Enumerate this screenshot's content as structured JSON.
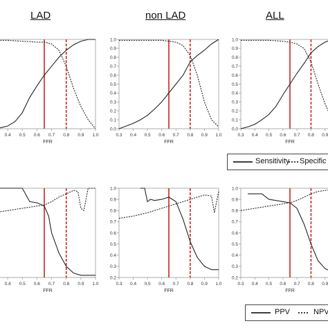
{
  "column_titles": [
    "LAD",
    "non LAD",
    "ALL"
  ],
  "legends": {
    "top": {
      "solid": "Sensitivity",
      "dashed": "Specific"
    },
    "bottom": {
      "solid": "PPV",
      "dashed": "NPV"
    }
  },
  "colors": {
    "curve": "#222222",
    "threshold": "#cc2222",
    "frame": "#999999"
  },
  "chart_data": [
    {
      "type": "line",
      "title": "LAD",
      "xlabel": "FFR",
      "ylabel": "",
      "xlim": [
        0.3,
        1.0
      ],
      "ylim": [
        0,
        1.0
      ],
      "x_ticks": [
        "0.4",
        "0.5",
        "0.6",
        "0.7",
        "0.8",
        "0.9",
        "1.0"
      ],
      "y_ticks": [],
      "vlines": [
        {
          "x": 0.65,
          "style": "solid"
        },
        {
          "x": 0.8,
          "style": "dashed"
        }
      ],
      "series": [
        {
          "name": "Sensitivity",
          "style": "solid",
          "x": [
            0.3,
            0.35,
            0.4,
            0.45,
            0.5,
            0.55,
            0.6,
            0.65,
            0.7,
            0.75,
            0.8,
            0.85,
            0.9,
            0.95,
            1.0
          ],
          "y": [
            0.0,
            0.01,
            0.03,
            0.08,
            0.18,
            0.35,
            0.48,
            0.6,
            0.7,
            0.8,
            0.88,
            0.94,
            0.98,
            1.0,
            1.0
          ]
        },
        {
          "name": "Specificity",
          "style": "dashed",
          "x": [
            0.3,
            0.4,
            0.5,
            0.6,
            0.65,
            0.7,
            0.75,
            0.8,
            0.85,
            0.9,
            0.95,
            1.0
          ],
          "y": [
            0.99,
            0.99,
            0.98,
            0.97,
            0.97,
            0.95,
            0.88,
            0.7,
            0.45,
            0.25,
            0.1,
            0.0
          ]
        }
      ]
    },
    {
      "type": "line",
      "title": "non LAD",
      "xlabel": "FFR",
      "ylabel": "",
      "xlim": [
        0.3,
        1.0
      ],
      "ylim": [
        0,
        1.0
      ],
      "x_ticks": [
        "0.3",
        "0.4",
        "0.5",
        "0.6",
        "0.7",
        "0.8",
        "0.9",
        "1.0"
      ],
      "y_ticks": [
        "0.0",
        "0.1",
        "0.2",
        "0.3",
        "0.4",
        "0.5",
        "0.6",
        "0.7",
        "0.8",
        "0.9",
        "1.0"
      ],
      "vlines": [
        {
          "x": 0.65,
          "style": "solid"
        },
        {
          "x": 0.8,
          "style": "dashed"
        }
      ],
      "series": [
        {
          "name": "Sensitivity",
          "style": "solid",
          "x": [
            0.3,
            0.35,
            0.4,
            0.45,
            0.5,
            0.55,
            0.6,
            0.65,
            0.7,
            0.75,
            0.8,
            0.85,
            0.9,
            0.95,
            1.0
          ],
          "y": [
            0.0,
            0.03,
            0.06,
            0.1,
            0.15,
            0.22,
            0.3,
            0.4,
            0.5,
            0.6,
            0.75,
            0.82,
            0.88,
            0.95,
            1.0
          ]
        },
        {
          "name": "Specificity",
          "style": "dashed",
          "x": [
            0.3,
            0.4,
            0.5,
            0.6,
            0.7,
            0.75,
            0.8,
            0.85,
            0.9,
            0.95,
            1.0
          ],
          "y": [
            0.99,
            0.99,
            0.99,
            0.99,
            0.97,
            0.93,
            0.82,
            0.6,
            0.3,
            0.1,
            0.02
          ]
        }
      ]
    },
    {
      "type": "line",
      "title": "ALL",
      "xlabel": "FFR",
      "ylabel": "",
      "xlim": [
        0.3,
        1.0
      ],
      "ylim": [
        0,
        1.0
      ],
      "x_ticks": [
        "0.3",
        "0.4",
        "0.5",
        "0.6",
        "0.7",
        "0.8",
        "0.9"
      ],
      "y_ticks": [
        "0.0",
        "0.1",
        "0.2",
        "0.3",
        "0.4",
        "0.5",
        "0.6",
        "0.7",
        "0.8",
        "0.9",
        "1.0"
      ],
      "vlines": [
        {
          "x": 0.65,
          "style": "solid"
        },
        {
          "x": 0.8,
          "style": "dashed"
        }
      ],
      "series": [
        {
          "name": "Sensitivity",
          "style": "solid",
          "x": [
            0.3,
            0.35,
            0.4,
            0.45,
            0.5,
            0.55,
            0.6,
            0.65,
            0.7,
            0.75,
            0.8,
            0.85,
            0.9,
            0.95,
            1.0
          ],
          "y": [
            0.0,
            0.02,
            0.05,
            0.1,
            0.16,
            0.25,
            0.38,
            0.5,
            0.62,
            0.73,
            0.85,
            0.92,
            0.97,
            1.0,
            1.0
          ]
        },
        {
          "name": "Specificity",
          "style": "dashed",
          "x": [
            0.3,
            0.4,
            0.5,
            0.6,
            0.65,
            0.7,
            0.75,
            0.8,
            0.85,
            0.9,
            0.95,
            1.0
          ],
          "y": [
            0.99,
            0.99,
            0.99,
            0.98,
            0.97,
            0.95,
            0.9,
            0.75,
            0.5,
            0.28,
            0.1,
            0.0
          ]
        }
      ]
    },
    {
      "type": "line",
      "title": "",
      "xlabel": "FFR",
      "ylabel": "",
      "xlim": [
        0.3,
        1.0
      ],
      "ylim": [
        0.2,
        1.0
      ],
      "x_ticks": [
        "0.4",
        "0.5",
        "0.6",
        "0.7",
        "0.8",
        "0.9",
        "1.0"
      ],
      "y_ticks": [],
      "vlines": [
        {
          "x": 0.65,
          "style": "solid"
        },
        {
          "x": 0.8,
          "style": "dashed"
        }
      ],
      "series": [
        {
          "name": "PPV",
          "style": "solid",
          "x": [
            0.3,
            0.4,
            0.5,
            0.55,
            0.6,
            0.65,
            0.68,
            0.7,
            0.75,
            0.8,
            0.85,
            0.9,
            0.95,
            1.0
          ],
          "y": [
            1.0,
            1.0,
            1.0,
            0.88,
            0.87,
            0.84,
            0.75,
            0.6,
            0.42,
            0.3,
            0.24,
            0.22,
            0.22,
            0.22
          ]
        },
        {
          "name": "NPV",
          "style": "dashed",
          "x": [
            0.3,
            0.4,
            0.5,
            0.6,
            0.65,
            0.7,
            0.75,
            0.8,
            0.85,
            0.88,
            0.9,
            0.92,
            0.95,
            1.0
          ],
          "y": [
            0.78,
            0.8,
            0.82,
            0.84,
            0.85,
            0.88,
            0.92,
            0.95,
            0.98,
            0.97,
            0.82,
            0.8,
            1.0,
            1.0
          ]
        }
      ]
    },
    {
      "type": "line",
      "title": "",
      "xlabel": "FFR",
      "ylabel": "",
      "xlim": [
        0.3,
        1.0
      ],
      "ylim": [
        0.2,
        1.0
      ],
      "x_ticks": [
        "0.3",
        "0.4",
        "0.5",
        "0.6",
        "0.7",
        "0.8",
        "0.9",
        "1.0"
      ],
      "y_ticks": [
        "0.2",
        "0.3",
        "0.4",
        "0.5",
        "0.6",
        "0.7",
        "0.8",
        "0.9",
        "1.0"
      ],
      "vlines": [
        {
          "x": 0.65,
          "style": "solid"
        },
        {
          "x": 0.8,
          "style": "dashed"
        }
      ],
      "series": [
        {
          "name": "PPV",
          "style": "solid",
          "x": [
            0.45,
            0.48,
            0.5,
            0.52,
            0.55,
            0.6,
            0.65,
            0.7,
            0.75,
            0.8,
            0.85,
            0.9,
            0.95,
            1.0
          ],
          "y": [
            1.0,
            1.0,
            0.88,
            0.9,
            0.89,
            0.9,
            0.92,
            0.88,
            0.72,
            0.52,
            0.38,
            0.3,
            0.27,
            0.27
          ]
        },
        {
          "name": "NPV",
          "style": "dashed",
          "x": [
            0.3,
            0.4,
            0.5,
            0.6,
            0.65,
            0.7,
            0.75,
            0.8,
            0.85,
            0.9,
            0.95,
            0.97,
            1.0
          ],
          "y": [
            0.73,
            0.75,
            0.78,
            0.82,
            0.84,
            0.86,
            0.88,
            0.9,
            0.92,
            0.94,
            0.93,
            0.78,
            0.97
          ]
        }
      ]
    },
    {
      "type": "line",
      "title": "",
      "xlabel": "FFR",
      "ylabel": "",
      "xlim": [
        0.3,
        1.0
      ],
      "ylim": [
        0.2,
        1.0
      ],
      "x_ticks": [
        "0.3",
        "0.4",
        "0.5",
        "0.6",
        "0.7",
        "0.8",
        "0.9"
      ],
      "y_ticks": [
        "0.2",
        "0.3",
        "0.4",
        "0.5",
        "0.6",
        "0.7",
        "0.8",
        "0.9",
        "1.0"
      ],
      "vlines": [
        {
          "x": 0.65,
          "style": "solid"
        },
        {
          "x": 0.8,
          "style": "dashed"
        }
      ],
      "series": [
        {
          "name": "PPV",
          "style": "solid",
          "x": [
            0.35,
            0.45,
            0.5,
            0.55,
            0.6,
            0.65,
            0.7,
            0.75,
            0.8,
            0.85,
            0.9,
            0.95,
            1.0
          ],
          "y": [
            0.95,
            0.95,
            0.9,
            0.89,
            0.88,
            0.87,
            0.82,
            0.68,
            0.5,
            0.35,
            0.28,
            0.25,
            0.24
          ]
        },
        {
          "name": "NPV",
          "style": "dashed",
          "x": [
            0.3,
            0.4,
            0.5,
            0.6,
            0.65,
            0.7,
            0.75,
            0.8,
            0.85,
            0.9,
            0.95,
            1.0
          ],
          "y": [
            0.8,
            0.82,
            0.84,
            0.86,
            0.87,
            0.89,
            0.92,
            0.95,
            0.97,
            0.98,
            0.99,
            1.0
          ]
        }
      ]
    }
  ]
}
